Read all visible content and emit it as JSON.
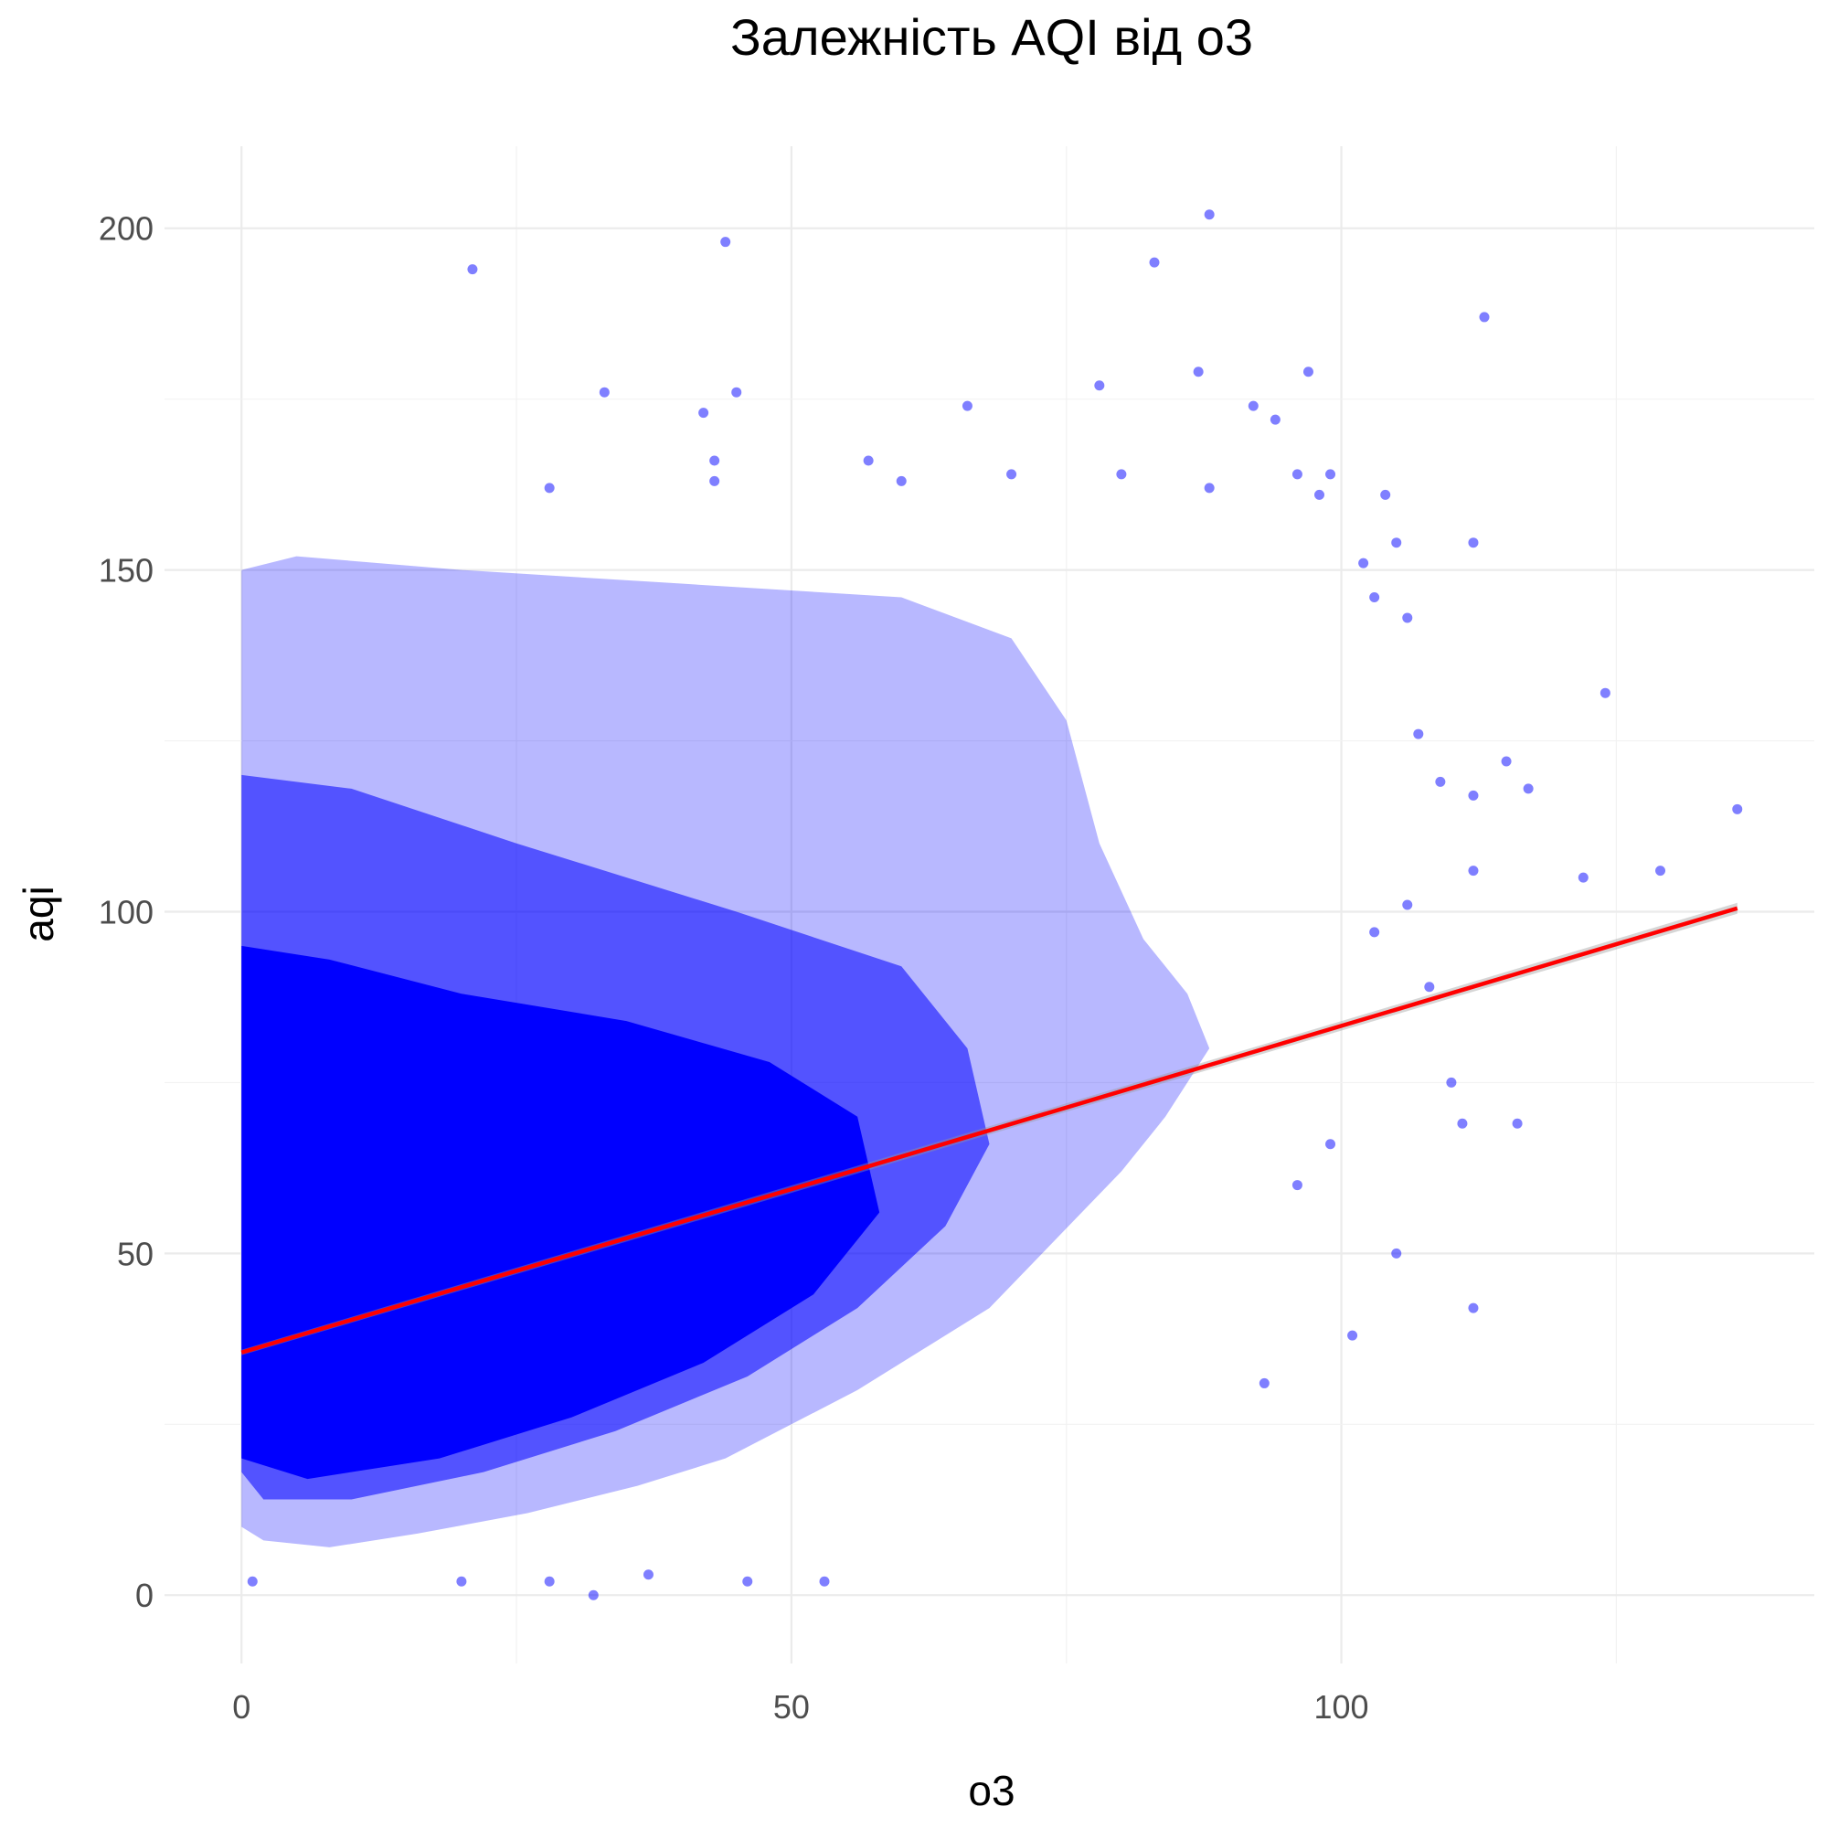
{
  "chart_data": {
    "type": "scatter",
    "title": "Залежність AQI від o3",
    "xlabel": "o3",
    "ylabel": "aqi",
    "xlim": [
      -7,
      143
    ],
    "ylim": [
      -10,
      212
    ],
    "x_ticks": [
      0,
      50,
      100
    ],
    "y_ticks": [
      0,
      50,
      100,
      150,
      200
    ],
    "x_tick_labels": [
      "0",
      "50",
      "100"
    ],
    "y_tick_labels": [
      "0",
      "50",
      "100",
      "150",
      "200"
    ],
    "grid": true,
    "legend": "none",
    "point_color": "#0000ff",
    "point_opacity": 0.5,
    "series": [
      {
        "kind": "points",
        "points": [
          [
            88,
            202
          ],
          [
            44,
            198
          ],
          [
            21,
            194
          ],
          [
            83,
            195
          ],
          [
            113,
            187
          ],
          [
            78,
            177
          ],
          [
            87,
            179
          ],
          [
            97,
            179
          ],
          [
            33,
            176
          ],
          [
            45,
            176
          ],
          [
            42,
            173
          ],
          [
            66,
            174
          ],
          [
            92,
            174
          ],
          [
            94,
            172
          ],
          [
            43,
            166
          ],
          [
            57,
            166
          ],
          [
            60,
            163
          ],
          [
            70,
            164
          ],
          [
            80,
            164
          ],
          [
            96,
            164
          ],
          [
            99,
            164
          ],
          [
            28,
            162
          ],
          [
            43,
            163
          ],
          [
            88,
            162
          ],
          [
            98,
            161
          ],
          [
            104,
            161
          ],
          [
            102,
            151
          ],
          [
            105,
            154
          ],
          [
            112,
            154
          ],
          [
            103,
            146
          ],
          [
            106,
            143
          ],
          [
            107,
            126
          ],
          [
            109,
            119
          ],
          [
            112,
            117
          ],
          [
            115,
            122
          ],
          [
            117,
            118
          ],
          [
            124,
            132
          ],
          [
            136,
            115
          ],
          [
            112,
            106
          ],
          [
            122,
            105
          ],
          [
            129,
            106
          ],
          [
            103,
            97
          ],
          [
            106,
            101
          ],
          [
            108,
            89
          ],
          [
            110,
            75
          ],
          [
            111,
            69
          ],
          [
            116,
            69
          ],
          [
            112,
            42
          ],
          [
            105,
            50
          ],
          [
            101,
            38
          ],
          [
            96,
            60
          ],
          [
            99,
            66
          ],
          [
            93,
            31
          ],
          [
            32,
            0
          ],
          [
            28,
            2
          ],
          [
            20,
            2
          ],
          [
            46,
            2
          ],
          [
            53,
            2
          ],
          [
            1,
            2
          ],
          [
            37,
            3
          ]
        ]
      },
      {
        "kind": "line",
        "name": "",
        "color": "#ff0000",
        "x": [
          0,
          136
        ],
        "y": [
          35.5,
          100.5
        ]
      }
    ]
  }
}
